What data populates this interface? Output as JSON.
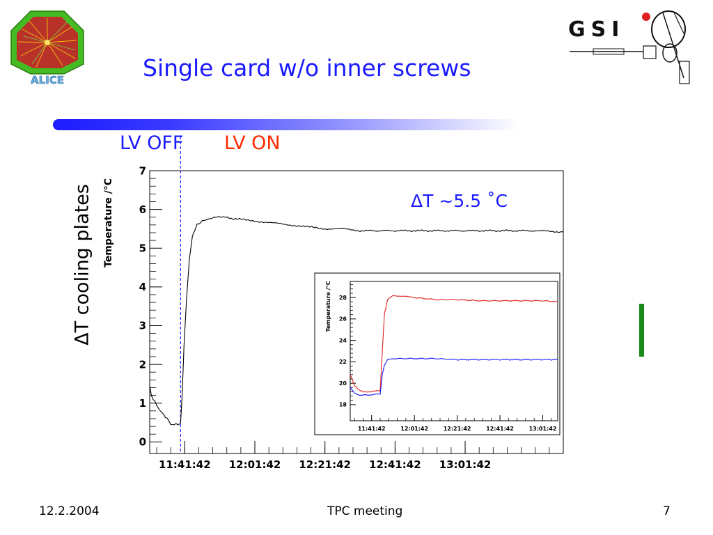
{
  "slide": {
    "title": "Single card w/o inner screws",
    "lv_off": "LV OFF",
    "lv_on": "LV ON",
    "delta_label": "ΔT cooling plates",
    "delta_note": "ΔT ~5.5 ˚C",
    "logo_left_text": "ALICE",
    "logo_right_text": "GSI",
    "footer_date": "12.2.2004",
    "footer_center": "TPC meeting",
    "footer_page": "7"
  },
  "colors": {
    "title": "#1a1aff",
    "lv_off": "#1a1aff",
    "lv_on": "#ff2a00",
    "inset_red": "#e02020",
    "inset_blue": "#1a1aff",
    "green_bar": "#1a8a1a"
  },
  "chart_data": [
    {
      "type": "line",
      "title": "",
      "xlabel": "",
      "ylabel": "Temperature /°C",
      "xlim": [
        0,
        118
      ],
      "ylim": [
        -0.3,
        7
      ],
      "x_unit": "minutes after 11:31:42",
      "xticks": [
        10,
        30,
        50,
        70,
        90
      ],
      "xtick_labels": [
        "11:41:42",
        "12:01:42",
        "12:21:42",
        "12:41:42",
        "13:01:42"
      ],
      "yticks": [
        0,
        1,
        2,
        3,
        4,
        5,
        6,
        7
      ],
      "ytick_labels": [
        "0",
        "1",
        "2",
        "3",
        "4",
        "5",
        "6",
        "7"
      ],
      "grid": false,
      "marker_x": 8.8,
      "series": [
        {
          "name": "",
          "color": "#000000",
          "points": [
            [
              0,
              1.45
            ],
            [
              0.5,
              1.2
            ],
            [
              1,
              1.1
            ],
            [
              2,
              0.95
            ],
            [
              3,
              0.8
            ],
            [
              4,
              0.7
            ],
            [
              5,
              0.6
            ],
            [
              6,
              0.45
            ],
            [
              7,
              0.45
            ],
            [
              8,
              0.45
            ],
            [
              8.8,
              0.45
            ],
            [
              9.3,
              1.3
            ],
            [
              9.8,
              2.5
            ],
            [
              10.5,
              3.7
            ],
            [
              11.3,
              4.7
            ],
            [
              12.2,
              5.3
            ],
            [
              13.5,
              5.6
            ],
            [
              15,
              5.7
            ],
            [
              17,
              5.75
            ],
            [
              19,
              5.8
            ],
            [
              21,
              5.8
            ],
            [
              25,
              5.75
            ],
            [
              30,
              5.7
            ],
            [
              35,
              5.65
            ],
            [
              40,
              5.6
            ],
            [
              45,
              5.55
            ],
            [
              50,
              5.5
            ],
            [
              55,
              5.5
            ],
            [
              60,
              5.45
            ],
            [
              70,
              5.45
            ],
            [
              80,
              5.45
            ],
            [
              90,
              5.45
            ],
            [
              100,
              5.45
            ],
            [
              110,
              5.45
            ],
            [
              118,
              5.42
            ]
          ]
        }
      ]
    },
    {
      "type": "line",
      "title": "",
      "xlabel": "",
      "ylabel": "Temperature /°C",
      "xlim": [
        0,
        97
      ],
      "ylim": [
        16.5,
        29.5
      ],
      "x_unit": "minutes after 11:31:42",
      "xticks": [
        10,
        30,
        50,
        70,
        90
      ],
      "xtick_labels": [
        "11:41:42",
        "12:01:42",
        "12:21:42",
        "12:41:42",
        "13:01:42"
      ],
      "yticks": [
        18,
        20,
        22,
        24,
        26,
        28
      ],
      "ytick_labels": [
        "18",
        "20",
        "22",
        "24",
        "26",
        "28"
      ],
      "grid": false,
      "series": [
        {
          "name": "",
          "color": "#e02020",
          "points": [
            [
              0,
              20.8
            ],
            [
              2,
              19.8
            ],
            [
              4,
              19.4
            ],
            [
              6,
              19.2
            ],
            [
              8,
              19.2
            ],
            [
              14,
              19.3
            ],
            [
              15,
              23.0
            ],
            [
              16,
              26.5
            ],
            [
              17.5,
              27.8
            ],
            [
              20,
              28.2
            ],
            [
              25,
              28.1
            ],
            [
              30,
              28.0
            ],
            [
              40,
              27.8
            ],
            [
              50,
              27.8
            ],
            [
              60,
              27.7
            ],
            [
              70,
              27.7
            ],
            [
              80,
              27.7
            ],
            [
              90,
              27.7
            ],
            [
              97,
              27.6
            ]
          ]
        },
        {
          "name": "",
          "color": "#1a1aff",
          "points": [
            [
              0,
              19.6
            ],
            [
              2,
              19.1
            ],
            [
              4,
              18.9
            ],
            [
              8,
              18.9
            ],
            [
              14,
              19.0
            ],
            [
              15,
              20.8
            ],
            [
              16,
              21.7
            ],
            [
              17.5,
              22.2
            ],
            [
              20,
              22.3
            ],
            [
              30,
              22.3
            ],
            [
              40,
              22.3
            ],
            [
              50,
              22.2
            ],
            [
              60,
              22.2
            ],
            [
              70,
              22.2
            ],
            [
              80,
              22.2
            ],
            [
              90,
              22.2
            ],
            [
              97,
              22.2
            ]
          ]
        }
      ]
    }
  ]
}
